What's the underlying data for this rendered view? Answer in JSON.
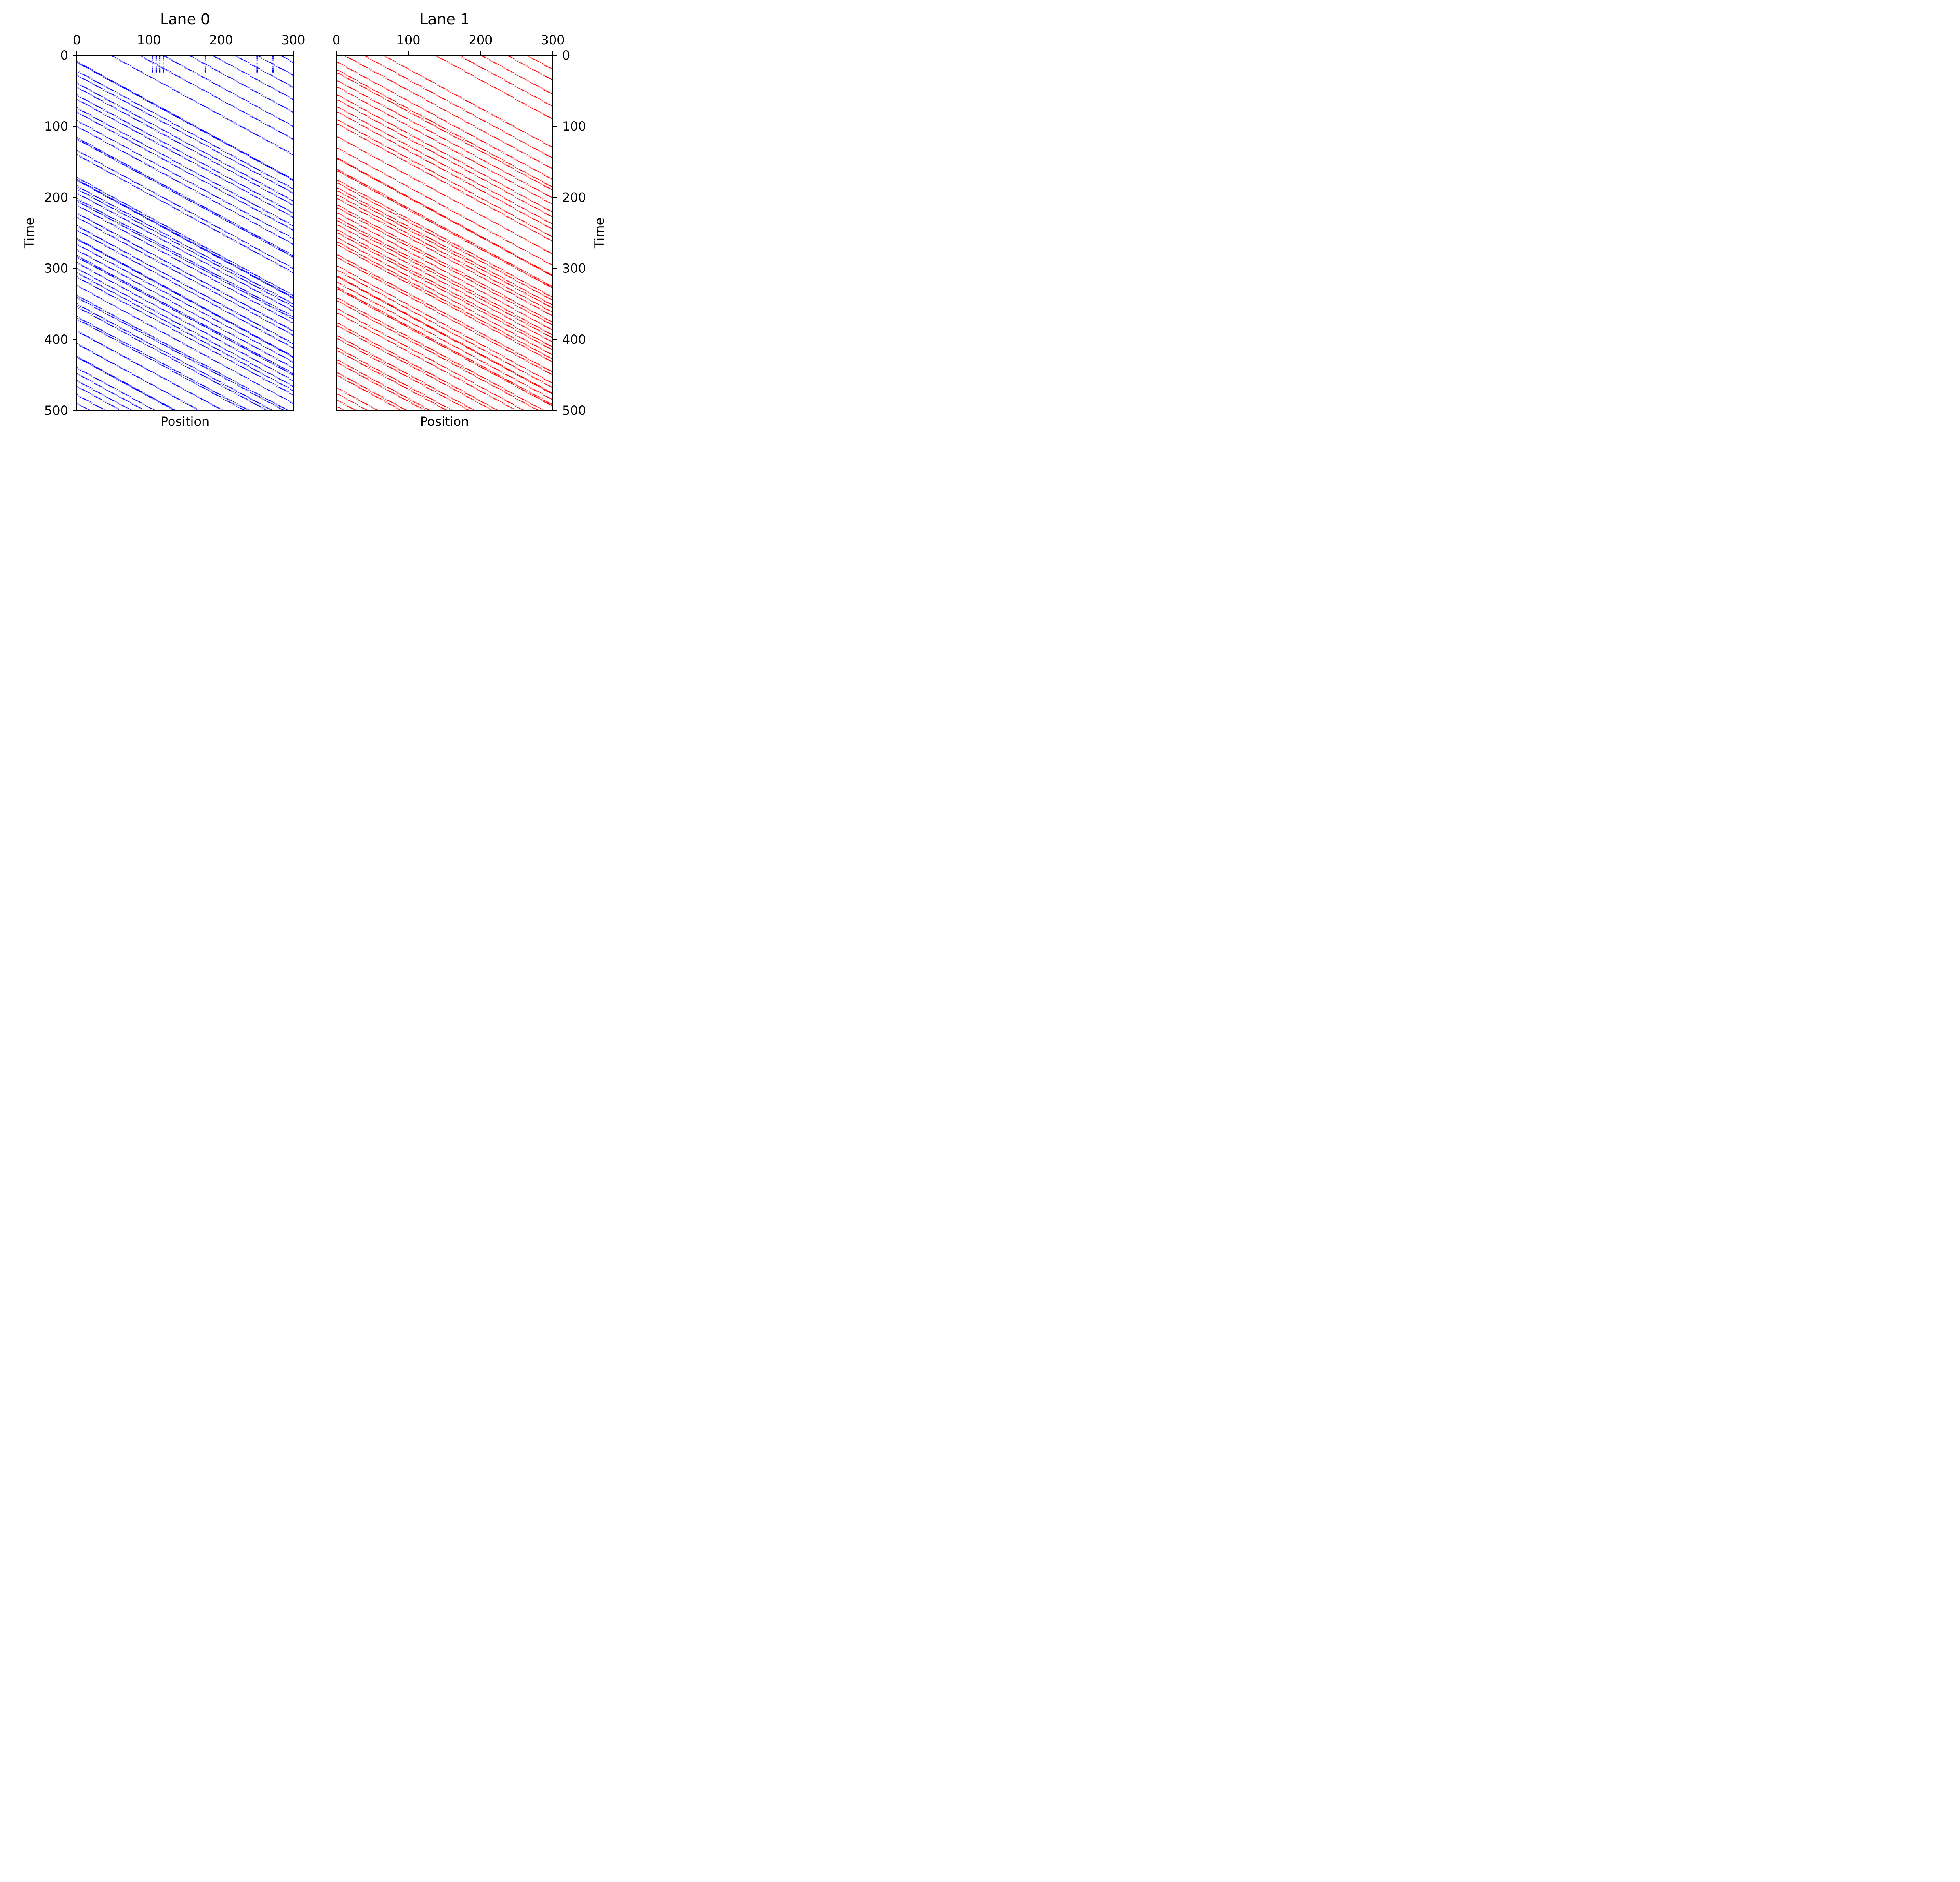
{
  "chart_data": [
    {
      "type": "scatter",
      "title": "Lane 0",
      "xlabel": "Position",
      "ylabel": "Time",
      "xlim": [
        0,
        300
      ],
      "ylim": [
        500,
        0
      ],
      "x_axis_position": "top",
      "y_axis_position": "left",
      "xticks": [
        "0",
        "100",
        "200",
        "300"
      ],
      "yticks": [
        "0",
        "100",
        "200",
        "300",
        "400",
        "500"
      ],
      "grid": false,
      "color": "#0000ff",
      "description_of_marks": "space-time diagram: vehicle trajectories as dense dotted diagonal streaks moving right with increasing time",
      "trajectories": [
        {
          "x": [
            [
              0,
              300
            ]
          ],
          "t0": 10,
          "speed": 1.0
        },
        {
          "x": [
            [
              0,
              300
            ]
          ],
          "t0": 28,
          "speed": 1.0
        },
        {
          "x": [
            [
              0,
              300
            ]
          ],
          "t0": 45,
          "speed": 1.0
        },
        {
          "x": [
            [
              0,
              300
            ]
          ],
          "t0": 62,
          "speed": 1.0
        },
        {
          "x": [
            [
              0,
              300
            ]
          ],
          "t0": 80,
          "speed": 1.0
        },
        {
          "x": [
            [
              0,
              300
            ]
          ],
          "t0": 100,
          "speed": 1.0
        },
        {
          "x": [
            [
              0,
              300
            ]
          ],
          "t0": 118,
          "speed": 1.0
        },
        {
          "x": [
            [
              0,
              300
            ]
          ],
          "t0": 140,
          "speed": 1.0
        },
        {
          "x": [
            [
              0,
              300
            ]
          ],
          "t0": 175,
          "speed": 1.0
        },
        {
          "x": [
            [
              0,
              300
            ]
          ],
          "t0": 188,
          "speed": 1.0
        },
        {
          "x": [
            [
              0,
              300
            ]
          ],
          "t0": 205,
          "speed": 1.0
        },
        {
          "x": [
            [
              0,
              300
            ]
          ],
          "t0": 222,
          "speed": 1.0
        },
        {
          "x": [
            [
              0,
              300
            ]
          ],
          "t0": 240,
          "speed": 1.0
        },
        {
          "x": [
            [
              0,
              300
            ]
          ],
          "t0": 258,
          "speed": 1.0
        },
        {
          "x": [
            [
              0,
              300
            ]
          ],
          "t0": 282,
          "speed": 1.0
        },
        {
          "x": [
            [
              0,
              300
            ]
          ],
          "t0": 300,
          "speed": 1.0
        },
        {
          "x": [
            [
              0,
              300
            ]
          ],
          "t0": 338,
          "speed": 1.0
        },
        {
          "x": [
            [
              0,
              300
            ]
          ],
          "t0": 350,
          "speed": 1.0
        },
        {
          "x": [
            [
              0,
              300
            ]
          ],
          "t0": 368,
          "speed": 1.0
        },
        {
          "x": [
            [
              0,
              300
            ]
          ],
          "t0": 388,
          "speed": 1.0
        },
        {
          "x": [
            [
              0,
              300
            ]
          ],
          "t0": 406,
          "speed": 1.0
        },
        {
          "x": [
            [
              0,
              300
            ]
          ],
          "t0": 425,
          "speed": 1.0
        },
        {
          "x": [
            [
              0,
              300
            ]
          ],
          "t0": 440,
          "speed": 1.0
        },
        {
          "x": [
            [
              0,
              300
            ]
          ],
          "t0": 458,
          "speed": 1.0
        },
        {
          "x": [
            [
              0,
              300
            ]
          ],
          "t0": 478,
          "speed": 1.0
        },
        {
          "x": [
            [
              0,
              300
            ]
          ],
          "t0": 490,
          "speed": 1.0
        }
      ],
      "stopped_vehicles_near_t0": [
        105,
        110,
        115,
        120,
        178,
        250,
        272
      ]
    },
    {
      "type": "scatter",
      "title": "Lane 1",
      "xlabel": "Position",
      "ylabel": "Time",
      "xlim": [
        0,
        300
      ],
      "ylim": [
        500,
        0
      ],
      "x_axis_position": "top",
      "y_axis_position": "right",
      "xticks": [
        "0",
        "100",
        "200",
        "300"
      ],
      "yticks": [
        "0",
        "100",
        "200",
        "300",
        "400",
        "500"
      ],
      "grid": false,
      "color": "#ff0000",
      "description_of_marks": "space-time diagram: vehicle trajectories as dense dotted diagonal streaks moving right with increasing time",
      "trajectories": [
        {
          "x": [
            [
              0,
              300
            ]
          ],
          "t0": 20,
          "speed": 1.0
        },
        {
          "x": [
            [
              0,
              300
            ]
          ],
          "t0": 35,
          "speed": 1.0
        },
        {
          "x": [
            [
              0,
              300
            ]
          ],
          "t0": 55,
          "speed": 1.0
        },
        {
          "x": [
            [
              0,
              300
            ]
          ],
          "t0": 72,
          "speed": 1.0
        },
        {
          "x": [
            [
              0,
              300
            ]
          ],
          "t0": 90,
          "speed": 1.0
        },
        {
          "x": [
            [
              0,
              300
            ]
          ],
          "t0": 130,
          "speed": 1.0
        },
        {
          "x": [
            [
              0,
              300
            ]
          ],
          "t0": 145,
          "speed": 1.0
        },
        {
          "x": [
            [
              0,
              300
            ]
          ],
          "t0": 160,
          "speed": 1.0
        },
        {
          "x": [
            [
              0,
              300
            ]
          ],
          "t0": 175,
          "speed": 1.0
        },
        {
          "x": [
            [
              0,
              300
            ]
          ],
          "t0": 190,
          "speed": 1.0
        },
        {
          "x": [
            [
              0,
              300
            ]
          ],
          "t0": 210,
          "speed": 1.0
        },
        {
          "x": [
            [
              0,
              300
            ]
          ],
          "t0": 228,
          "speed": 1.0
        },
        {
          "x": [
            [
              0,
              300
            ]
          ],
          "t0": 245,
          "speed": 1.0
        },
        {
          "x": [
            [
              0,
              300
            ]
          ],
          "t0": 262,
          "speed": 1.0
        },
        {
          "x": [
            [
              0,
              300
            ]
          ],
          "t0": 280,
          "speed": 1.0
        },
        {
          "x": [
            [
              0,
              300
            ]
          ],
          "t0": 310,
          "speed": 1.0
        },
        {
          "x": [
            [
              0,
              300
            ]
          ],
          "t0": 328,
          "speed": 1.0
        },
        {
          "x": [
            [
              0,
              300
            ]
          ],
          "t0": 345,
          "speed": 1.0
        },
        {
          "x": [
            [
              0,
              300
            ]
          ],
          "t0": 362,
          "speed": 1.0
        },
        {
          "x": [
            [
              0,
              300
            ]
          ],
          "t0": 380,
          "speed": 1.0
        },
        {
          "x": [
            [
              0,
              300
            ]
          ],
          "t0": 398,
          "speed": 1.0
        },
        {
          "x": [
            [
              0,
              300
            ]
          ],
          "t0": 415,
          "speed": 1.0
        },
        {
          "x": [
            [
              0,
              300
            ]
          ],
          "t0": 432,
          "speed": 1.0
        },
        {
          "x": [
            [
              0,
              300
            ]
          ],
          "t0": 450,
          "speed": 1.0
        },
        {
          "x": [
            [
              0,
              300
            ]
          ],
          "t0": 468,
          "speed": 1.0
        },
        {
          "x": [
            [
              0,
              300
            ]
          ],
          "t0": 485,
          "speed": 1.0
        }
      ],
      "stopped_vehicles_near_t0": []
    }
  ]
}
